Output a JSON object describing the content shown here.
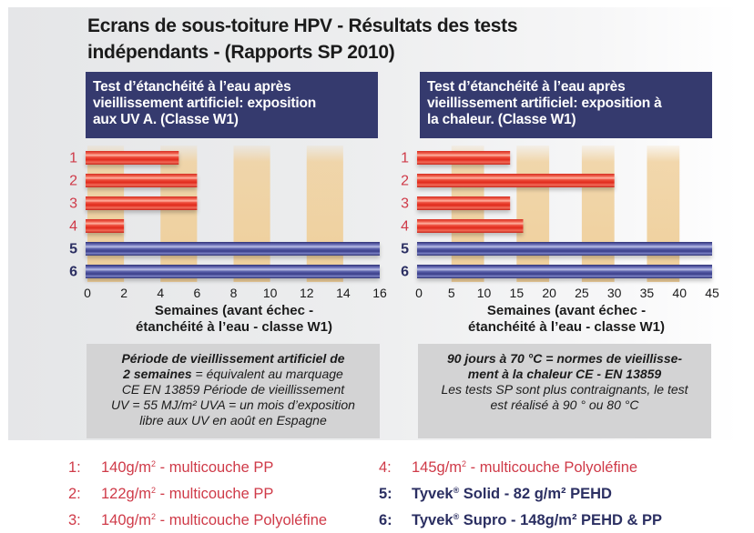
{
  "title_line1": "Ecrans de sous-toiture HPV - Résultats des tests",
  "title_line2": "indépendants - (Rapports SP 2010)",
  "colors": {
    "header_bg": "#353a6e",
    "red_bar": "#e8392a",
    "blue_bar": "#4a4f99",
    "band": "#f0d19e",
    "red_label": "#cf3a48",
    "blue_label": "#2b2f62",
    "note_bg": "#d3d3d4"
  },
  "chart_data": [
    {
      "type": "bar",
      "orientation": "horizontal",
      "title": "Test d’étanchéité à l’eau après vieillissement artificiel: exposition aux UV A. (Classe W1)",
      "title_lines": [
        "Test d’étanchéité à l’eau après",
        "vieillissement artificiel: exposition",
        "aux UV A. (Classe W1)"
      ],
      "categories": [
        "1",
        "2",
        "3",
        "4",
        "5",
        "6"
      ],
      "values": [
        5,
        6,
        6,
        2,
        16,
        16
      ],
      "xlim": [
        0,
        16
      ],
      "xticks": [
        "0",
        "2",
        "4",
        "6",
        "8",
        "10",
        "12",
        "14",
        "16"
      ],
      "xtick_values": [
        0,
        2,
        4,
        6,
        8,
        10,
        12,
        14,
        16
      ],
      "shaded_bands": [
        [
          0,
          2
        ],
        [
          4,
          6
        ],
        [
          8,
          10
        ],
        [
          12,
          14
        ]
      ],
      "xlabel_lines": [
        "Semaines (avant échec -",
        "étanchéité à l’eau - classe W1)"
      ],
      "grid": false
    },
    {
      "type": "bar",
      "orientation": "horizontal",
      "title": "Test d’étanchéité à l’eau après vieillissement artificiel: exposition à la chaleur. (Classe W1)",
      "title_lines": [
        "Test d’étanchéité à l’eau après",
        "vieillissement artificiel: exposition à",
        "la chaleur. (Classe W1)"
      ],
      "categories": [
        "1",
        "2",
        "3",
        "4",
        "5",
        "6"
      ],
      "values": [
        14,
        30,
        14,
        16,
        45,
        45
      ],
      "xlim": [
        0,
        45
      ],
      "xticks": [
        "0",
        "5",
        "10",
        "15",
        "20",
        "25",
        "30",
        "35",
        "40",
        "45"
      ],
      "xtick_values": [
        0,
        5,
        10,
        15,
        20,
        25,
        30,
        35,
        40,
        45
      ],
      "shaded_bands": [
        [
          5,
          10
        ],
        [
          15,
          20
        ],
        [
          25,
          30
        ],
        [
          35,
          40
        ]
      ],
      "xlabel_lines": [
        "Semaines (avant échec -",
        "étanchéité à l’eau - classe W1)"
      ],
      "grid": false
    }
  ],
  "notes": {
    "left": {
      "bold": "Période de vieillissement artificiel de 2 semaines",
      "bold_line1": "Période de vieillissement artificiel de",
      "bold_line2": "2 semaines",
      "rest_line2": " = équivalent au marquage",
      "line3": "CE EN 13859 Période de vieillissement",
      "line4": "UV = 55 MJ/m² UVA = un mois d’exposition",
      "line5": "libre aux UV en août en Espagne"
    },
    "right": {
      "bold_line1": "90 jours à 70 °C = normes de vieillisse-",
      "bold_line2": "ment à la chaleur CE - EN 13859",
      "line3": "Les tests SP sont plus contraignants, le test",
      "line4": "est réalisé à 90 ° ou 80 °C"
    }
  },
  "legend": [
    {
      "num": "1:",
      "pre": "140g/m",
      "sup": "2",
      "post": " - multicouche PP",
      "series": "red"
    },
    {
      "num": "2:",
      "pre": "122g/m",
      "sup": "2",
      "post": " - multicouche PP",
      "series": "red"
    },
    {
      "num": "3:",
      "pre": "140g/m",
      "sup": "2",
      "post": " - multicouche Polyoléfine",
      "series": "red"
    },
    {
      "num": "4:",
      "pre": "145g/m",
      "sup": "2",
      "post": " - multicouche Polyoléfine",
      "series": "red"
    },
    {
      "num": "5:",
      "pre": "Tyvek",
      "sup": "®",
      "post": " Solid - 82 g/m² PEHD",
      "series": "blue"
    },
    {
      "num": "6:",
      "pre": "Tyvek",
      "sup": "®",
      "post": " Supro - 148g/m² PEHD & PP",
      "series": "blue"
    }
  ]
}
